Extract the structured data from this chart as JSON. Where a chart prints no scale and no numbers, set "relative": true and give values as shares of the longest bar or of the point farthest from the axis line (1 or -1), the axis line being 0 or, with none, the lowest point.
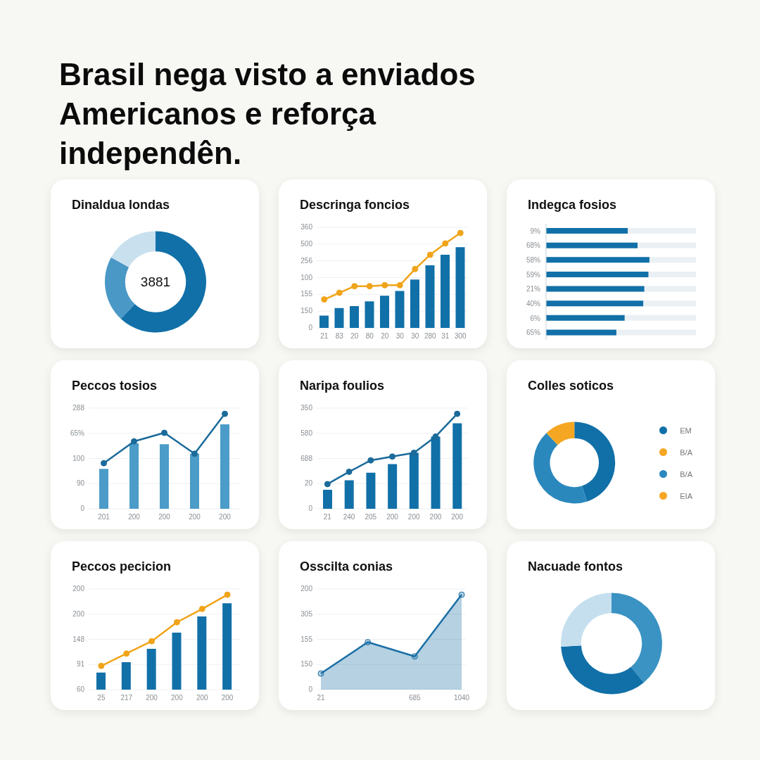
{
  "chart_data": [
    {
      "type": "other",
      "title": "Brasil nega visto a enviados Americanos e reforça independên."
    },
    {
      "type": "donut",
      "title": "Dinaldua londas",
      "categories": [
        null,
        null,
        null
      ],
      "values": [
        62,
        21,
        17
      ],
      "colors": [
        "#1170a8",
        "#4a98c6",
        "#c9e0ee"
      ],
      "annotations": [
        "3881"
      ]
    },
    {
      "type": "bar",
      "title": "Descringa foncios",
      "relative": true,
      "categories": [
        "21",
        "83",
        "20",
        "80",
        "20",
        "30",
        "30",
        "280",
        "31",
        "300"
      ],
      "series": [
        {
          "type": "bar",
          "color": "#1170a8",
          "values": [
            0.13,
            0.21,
            0.23,
            0.28,
            0.34,
            0.39,
            0.51,
            0.66,
            0.77,
            0.85
          ]
        },
        {
          "type": "line",
          "color": "#f0a419",
          "values": [
            0.3,
            0.37,
            0.44,
            0.44,
            0.45,
            0.45,
            0.62,
            0.77,
            0.89,
            1
          ]
        }
      ],
      "annotations": [
        "0",
        "150",
        "155",
        "100",
        "256",
        "500",
        "360"
      ],
      "grid": "y",
      "marker": "circle"
    },
    {
      "type": "bar",
      "title": "Indegca fosios",
      "orientation": "horizontal",
      "relative": true,
      "categories": [
        "9%",
        "68%",
        "58%",
        "59%",
        "21%",
        "40%",
        "6%",
        "65%"
      ],
      "values": [
        0.79,
        0.885,
        1,
        0.99,
        0.95,
        0.94,
        0.76,
        0.68
      ],
      "color": "#1170a8"
    },
    {
      "type": "bar",
      "title": "Peccos tosios",
      "relative": true,
      "categories": [
        "201",
        "200",
        "200",
        "200",
        "200"
      ],
      "series": [
        {
          "type": "bar",
          "color": "#4b9cc8",
          "values": [
            0.42,
            0.69,
            0.68,
            0.58,
            0.89
          ]
        },
        {
          "type": "line",
          "color": "#1a6a9a",
          "values": [
            0.48,
            0.71,
            0.8,
            0.58,
            1
          ]
        }
      ],
      "annotations": [
        "0",
        "90",
        "100",
        "65%",
        "288"
      ],
      "grid": "y",
      "marker": "circle"
    },
    {
      "type": "bar",
      "title": "Naripa foulios",
      "relative": true,
      "categories": [
        "21",
        "240",
        "205",
        "200",
        "200",
        "200",
        "200"
      ],
      "series": [
        {
          "type": "bar",
          "color": "#1170a8",
          "values": [
            0.2,
            0.3,
            0.38,
            0.47,
            0.59,
            0.76,
            0.9
          ]
        },
        {
          "type": "line",
          "color": "#1a6a9a",
          "values": [
            0.26,
            0.39,
            0.51,
            0.55,
            0.59,
            0.76,
            1
          ]
        }
      ],
      "annotations": [
        "0",
        "20",
        "688",
        "580",
        "350"
      ],
      "grid": "y",
      "marker": "circle"
    },
    {
      "type": "donut",
      "title": "Colles soticos",
      "categories": [
        "EM",
        "B/A",
        "B/A",
        "EIA"
      ],
      "values": [
        45,
        0,
        43,
        12
      ],
      "colors": [
        "#1170a8",
        "#f5a623",
        "#2b88bd",
        "#f5a623"
      ],
      "legend": "right"
    },
    {
      "type": "bar",
      "title": "Peccos pecicion",
      "relative": true,
      "categories": [
        "25",
        "217",
        "200",
        "200",
        "200",
        "200"
      ],
      "series": [
        {
          "type": "bar",
          "color": "#1170a8",
          "values": [
            0.18,
            0.29,
            0.43,
            0.6,
            0.77,
            0.91
          ]
        },
        {
          "type": "line",
          "color": "#f0a419",
          "values": [
            0.25,
            0.38,
            0.51,
            0.71,
            0.85,
            1
          ]
        }
      ],
      "annotations": [
        "60",
        "91",
        "148",
        "200",
        "200"
      ],
      "grid": "y",
      "marker": "circle"
    },
    {
      "type": "area",
      "title": "Osscilta conias",
      "relative": true,
      "categories": [
        "21",
        null,
        "685",
        "1040"
      ],
      "values": [
        0.17,
        0.5,
        0.35,
        1
      ],
      "color": "#1a6fa5",
      "annotations": [
        "0",
        "150",
        "155",
        "305",
        "200"
      ],
      "grid": "y",
      "marker": "circle"
    },
    {
      "type": "donut",
      "title": "Nacuade fontos",
      "categories": [
        null,
        null,
        null
      ],
      "values": [
        39,
        35,
        26
      ],
      "colors": [
        "#3a93c3",
        "#1170a8",
        "#c5dfee"
      ]
    }
  ]
}
